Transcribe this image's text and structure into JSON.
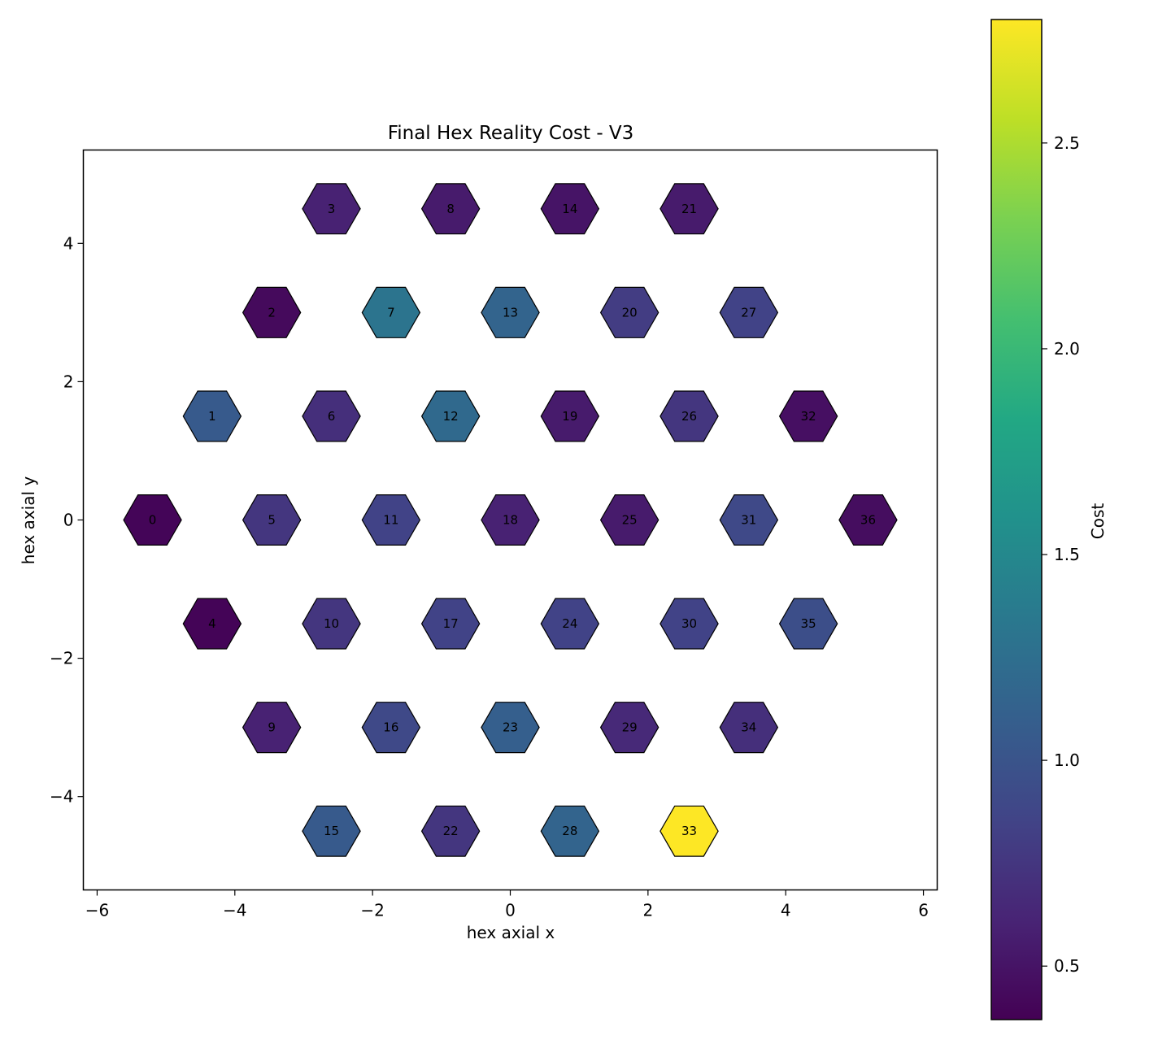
{
  "chart_data": {
    "type": "hexbin",
    "title": "Final Hex Reality Cost - V3",
    "xlabel": "hex axial x",
    "ylabel": "hex axial y",
    "xlim": [
      -6.2,
      6.2
    ],
    "ylim": [
      -5.35,
      5.35
    ],
    "xticks": [
      -6,
      -4,
      -2,
      0,
      2,
      4,
      6
    ],
    "xtick_labels": [
      "−6",
      "−4",
      "−2",
      "0",
      "2",
      "4",
      "6"
    ],
    "yticks": [
      -4,
      -2,
      0,
      2,
      4
    ],
    "ytick_labels": [
      "−4",
      "−2",
      "0",
      "2",
      "4"
    ],
    "colorbar": {
      "label": "Cost",
      "colormap": "viridis",
      "range": [
        0.37,
        2.8
      ],
      "ticks": [
        0.5,
        1.0,
        1.5,
        2.0,
        2.5
      ],
      "tick_labels": [
        "0.5",
        "1.0",
        "1.5",
        "2.0",
        "2.5"
      ]
    },
    "grid": false,
    "cells": [
      {
        "id": "0",
        "x": -5.196,
        "y": 0.0,
        "cost": 0.4
      },
      {
        "id": "1",
        "x": -4.33,
        "y": 1.5,
        "cost": 1.05
      },
      {
        "id": "2",
        "x": -3.464,
        "y": 3.0,
        "cost": 0.43
      },
      {
        "id": "3",
        "x": -2.598,
        "y": 4.5,
        "cost": 0.6
      },
      {
        "id": "4",
        "x": -4.33,
        "y": -1.5,
        "cost": 0.39
      },
      {
        "id": "5",
        "x": -3.464,
        "y": 0.0,
        "cost": 0.75
      },
      {
        "id": "6",
        "x": -2.598,
        "y": 1.5,
        "cost": 0.7
      },
      {
        "id": "7",
        "x": -1.732,
        "y": 3.0,
        "cost": 1.3
      },
      {
        "id": "8",
        "x": -0.866,
        "y": 4.5,
        "cost": 0.55
      },
      {
        "id": "9",
        "x": -3.464,
        "y": -3.0,
        "cost": 0.6
      },
      {
        "id": "10",
        "x": -2.598,
        "y": -1.5,
        "cost": 0.75
      },
      {
        "id": "11",
        "x": -1.732,
        "y": 0.0,
        "cost": 0.85
      },
      {
        "id": "12",
        "x": -0.866,
        "y": 1.5,
        "cost": 1.2
      },
      {
        "id": "13",
        "x": 0.0,
        "y": 3.0,
        "cost": 1.15
      },
      {
        "id": "14",
        "x": 0.866,
        "y": 4.5,
        "cost": 0.5
      },
      {
        "id": "15",
        "x": -2.598,
        "y": -4.5,
        "cost": 1.05
      },
      {
        "id": "16",
        "x": -1.732,
        "y": -3.0,
        "cost": 0.9
      },
      {
        "id": "17",
        "x": -0.866,
        "y": -1.5,
        "cost": 0.85
      },
      {
        "id": "18",
        "x": 0.0,
        "y": 0.0,
        "cost": 0.6
      },
      {
        "id": "19",
        "x": 0.866,
        "y": 1.5,
        "cost": 0.55
      },
      {
        "id": "20",
        "x": 1.732,
        "y": 3.0,
        "cost": 0.8
      },
      {
        "id": "21",
        "x": 2.598,
        "y": 4.5,
        "cost": 0.55
      },
      {
        "id": "22",
        "x": -0.866,
        "y": -4.5,
        "cost": 0.75
      },
      {
        "id": "23",
        "x": 0.0,
        "y": -3.0,
        "cost": 1.1
      },
      {
        "id": "24",
        "x": 0.866,
        "y": -1.5,
        "cost": 0.85
      },
      {
        "id": "25",
        "x": 1.732,
        "y": 0.0,
        "cost": 0.55
      },
      {
        "id": "26",
        "x": 2.598,
        "y": 1.5,
        "cost": 0.75
      },
      {
        "id": "27",
        "x": 3.464,
        "y": 3.0,
        "cost": 0.85
      },
      {
        "id": "28",
        "x": 0.866,
        "y": -4.5,
        "cost": 1.15
      },
      {
        "id": "29",
        "x": 1.732,
        "y": -3.0,
        "cost": 0.65
      },
      {
        "id": "30",
        "x": 2.598,
        "y": -1.5,
        "cost": 0.85
      },
      {
        "id": "31",
        "x": 3.464,
        "y": 0.0,
        "cost": 0.9
      },
      {
        "id": "32",
        "x": 4.33,
        "y": 1.5,
        "cost": 0.47
      },
      {
        "id": "33",
        "x": 2.598,
        "y": -4.5,
        "cost": 2.8
      },
      {
        "id": "34",
        "x": 3.464,
        "y": -3.0,
        "cost": 0.7
      },
      {
        "id": "35",
        "x": 4.33,
        "y": -1.5,
        "cost": 0.95
      },
      {
        "id": "36",
        "x": 5.196,
        "y": 0.0,
        "cost": 0.45
      }
    ]
  }
}
